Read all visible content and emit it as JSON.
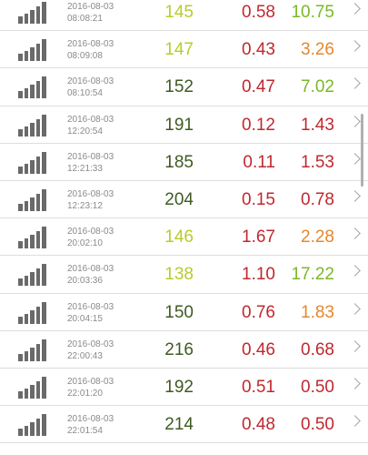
{
  "colors": {
    "yellow_green": "#b8cc2a",
    "dark_green": "#3f5a22",
    "red": "#c0282e",
    "green": "#7ab828",
    "orange": "#e7872a",
    "timestamp": "#8a8a8a"
  },
  "rows": [
    {
      "date": "2016-08-03",
      "time": "08:08:21",
      "v1": "145",
      "v1_color": "#b8cc2a",
      "v2": "0.58",
      "v2_color": "#c0282e",
      "v3": "10.75",
      "v3_color": "#7ab828"
    },
    {
      "date": "2016-08-03",
      "time": "08:09:08",
      "v1": "147",
      "v1_color": "#b8cc2a",
      "v2": "0.43",
      "v2_color": "#c0282e",
      "v3": "3.26",
      "v3_color": "#e7872a"
    },
    {
      "date": "2016-08-03",
      "time": "08:10:54",
      "v1": "152",
      "v1_color": "#3f5a22",
      "v2": "0.47",
      "v2_color": "#c0282e",
      "v3": "7.02",
      "v3_color": "#7ab828"
    },
    {
      "date": "2016-08-03",
      "time": "12:20:54",
      "v1": "191",
      "v1_color": "#3f5a22",
      "v2": "0.12",
      "v2_color": "#c0282e",
      "v3": "1.43",
      "v3_color": "#c0282e"
    },
    {
      "date": "2016-08-03",
      "time": "12:21:33",
      "v1": "185",
      "v1_color": "#3f5a22",
      "v2": "0.11",
      "v2_color": "#c0282e",
      "v3": "1.53",
      "v3_color": "#c0282e"
    },
    {
      "date": "2016-08-03",
      "time": "12:23:12",
      "v1": "204",
      "v1_color": "#3f5a22",
      "v2": "0.15",
      "v2_color": "#c0282e",
      "v3": "0.78",
      "v3_color": "#c0282e"
    },
    {
      "date": "2016-08-03",
      "time": "20:02:10",
      "v1": "146",
      "v1_color": "#b8cc2a",
      "v2": "1.67",
      "v2_color": "#c0282e",
      "v3": "2.28",
      "v3_color": "#e7872a"
    },
    {
      "date": "2016-08-03",
      "time": "20:03:36",
      "v1": "138",
      "v1_color": "#b8cc2a",
      "v2": "1.10",
      "v2_color": "#c0282e",
      "v3": "17.22",
      "v3_color": "#7ab828"
    },
    {
      "date": "2016-08-03",
      "time": "20:04:15",
      "v1": "150",
      "v1_color": "#3f5a22",
      "v2": "0.76",
      "v2_color": "#c0282e",
      "v3": "1.83",
      "v3_color": "#e7872a"
    },
    {
      "date": "2016-08-03",
      "time": "22:00:43",
      "v1": "216",
      "v1_color": "#3f5a22",
      "v2": "0.46",
      "v2_color": "#c0282e",
      "v3": "0.68",
      "v3_color": "#c0282e"
    },
    {
      "date": "2016-08-03",
      "time": "22:01:20",
      "v1": "192",
      "v1_color": "#3f5a22",
      "v2": "0.51",
      "v2_color": "#c0282e",
      "v3": "0.50",
      "v3_color": "#c0282e"
    },
    {
      "date": "2016-08-03",
      "time": "22:01:54",
      "v1": "214",
      "v1_color": "#3f5a22",
      "v2": "0.48",
      "v2_color": "#c0282e",
      "v3": "0.50",
      "v3_color": "#c0282e"
    }
  ],
  "icons": {
    "row_icon": "signal-bars-icon",
    "row_action": "chevron-right-icon"
  }
}
